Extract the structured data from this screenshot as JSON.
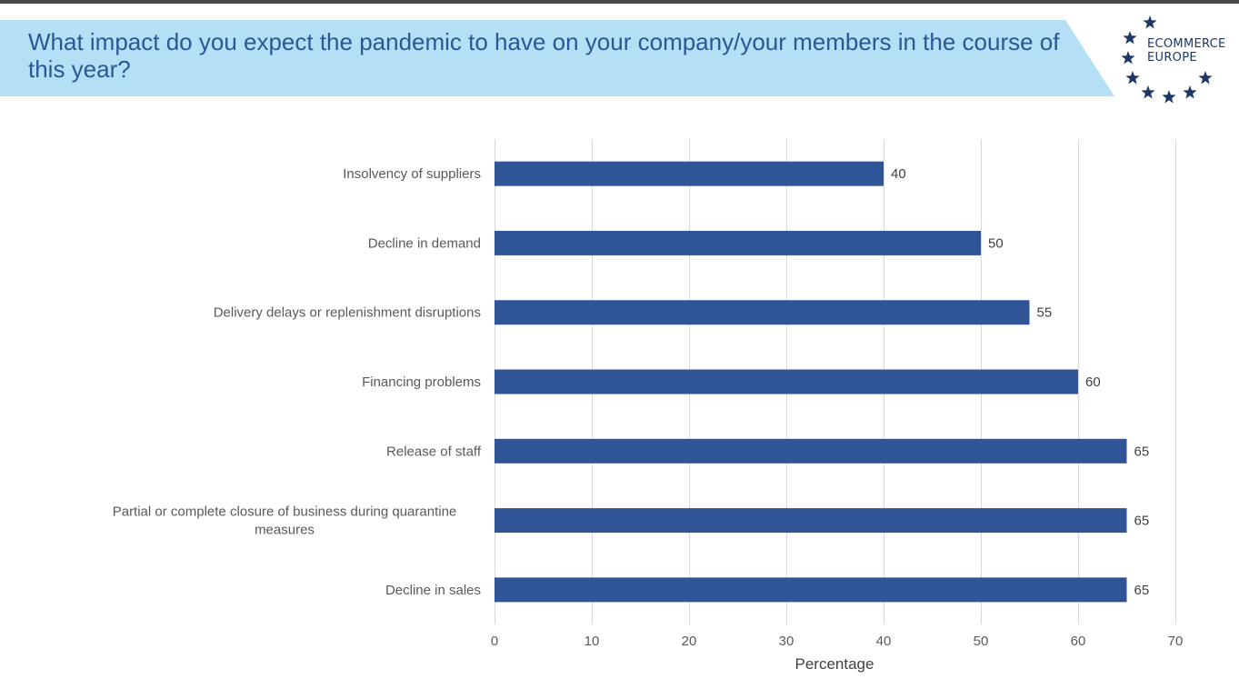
{
  "header": {
    "title": "What impact do you expect the pandemic to have on your company/your members in the course of this year?",
    "banner_color": "#b4dff5",
    "title_color": "#2b5797"
  },
  "logo": {
    "line1": "ECOMMERCE",
    "line2": "EUROPE",
    "color": "#1b3766"
  },
  "chart_data": {
    "type": "bar",
    "orientation": "horizontal",
    "categories": [
      "Insolvency of suppliers",
      "Decline in demand",
      "Delivery delays or replenishment disruptions",
      "Financing problems",
      "Release of staff",
      "Partial or complete closure of business during quarantine measures",
      "Decline in sales"
    ],
    "category_lines": [
      [
        "Insolvency of suppliers"
      ],
      [
        "Decline in demand"
      ],
      [
        "Delivery delays or replenishment disruptions"
      ],
      [
        "Financing problems"
      ],
      [
        "Release of staff"
      ],
      [
        "Partial or complete closure of business during quarantine",
        "measures"
      ],
      [
        "Decline in sales"
      ]
    ],
    "values": [
      40,
      50,
      55,
      60,
      65,
      65,
      65
    ],
    "xlabel": "Percentage",
    "ylabel": "",
    "xlim": [
      0,
      70
    ],
    "xticks": [
      0,
      10,
      20,
      30,
      40,
      50,
      60,
      70
    ],
    "grid": true,
    "legend": "none",
    "bar_color": "#2f5597"
  }
}
